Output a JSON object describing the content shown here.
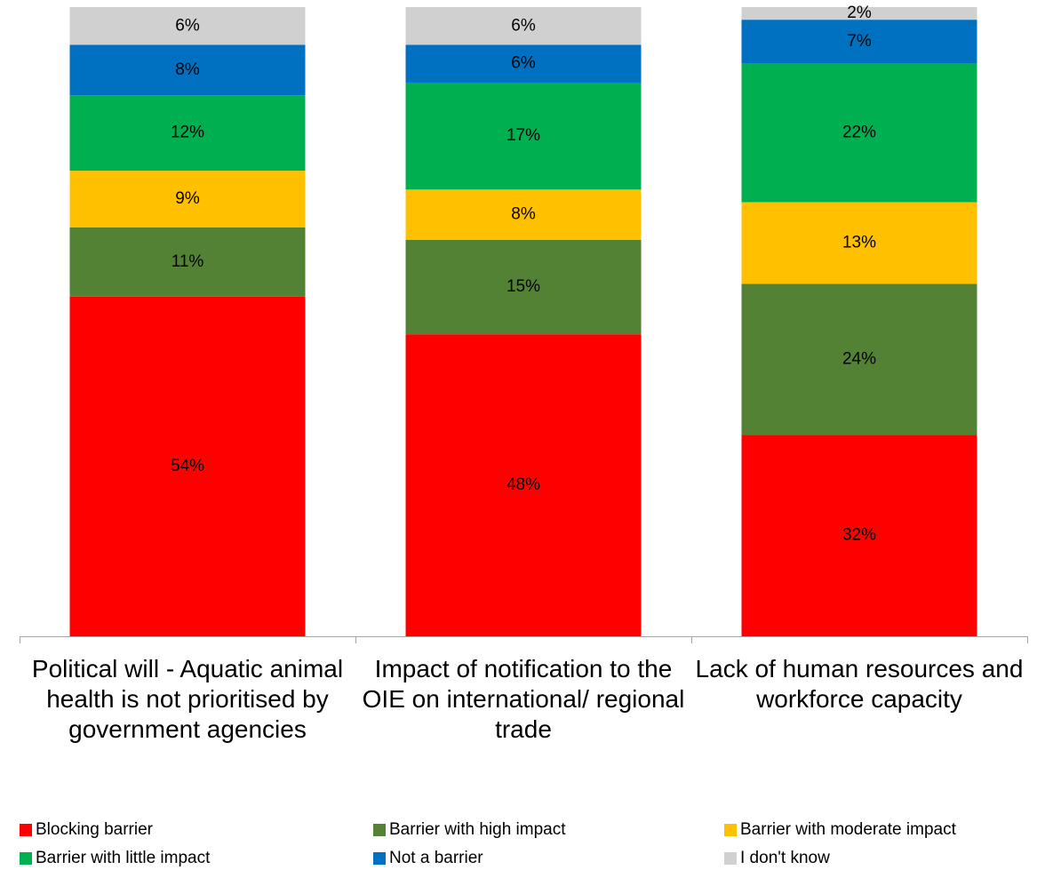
{
  "chart_data": {
    "type": "stacked-bar",
    "categories": [
      "Political will - Aquatic animal health is not prioritised by government agencies",
      "Impact of notification to the OIE on international/ regional trade",
      "Lack of human resources and workforce capacity"
    ],
    "series": [
      {
        "name": "Blocking barrier",
        "color": "#ff0000",
        "values": [
          54,
          48,
          32
        ],
        "value_labels": [
          "54%",
          "48%",
          "32%"
        ]
      },
      {
        "name": "Barrier with high impact",
        "color": "#548235",
        "values": [
          11,
          15,
          24
        ],
        "value_labels": [
          "11%",
          "15%",
          "24%"
        ]
      },
      {
        "name": "Barrier with moderate impact",
        "color": "#ffc000",
        "values": [
          9,
          8,
          13
        ],
        "value_labels": [
          "9%",
          "8%",
          "13%"
        ]
      },
      {
        "name": "Barrier with little impact",
        "color": "#00b050",
        "values": [
          12,
          17,
          22
        ],
        "value_labels": [
          "12%",
          "17%",
          "22%"
        ]
      },
      {
        "name": "Not a barrier",
        "color": "#0070c0",
        "values": [
          8,
          6,
          7
        ],
        "value_labels": [
          "8%",
          "6%",
          "7%"
        ]
      },
      {
        "name": "I don't know",
        "color": "#d0d0d0",
        "values": [
          6,
          6,
          2
        ],
        "value_labels": [
          "6%",
          "6%",
          "2%"
        ]
      }
    ],
    "ylim": [
      0,
      100
    ]
  }
}
